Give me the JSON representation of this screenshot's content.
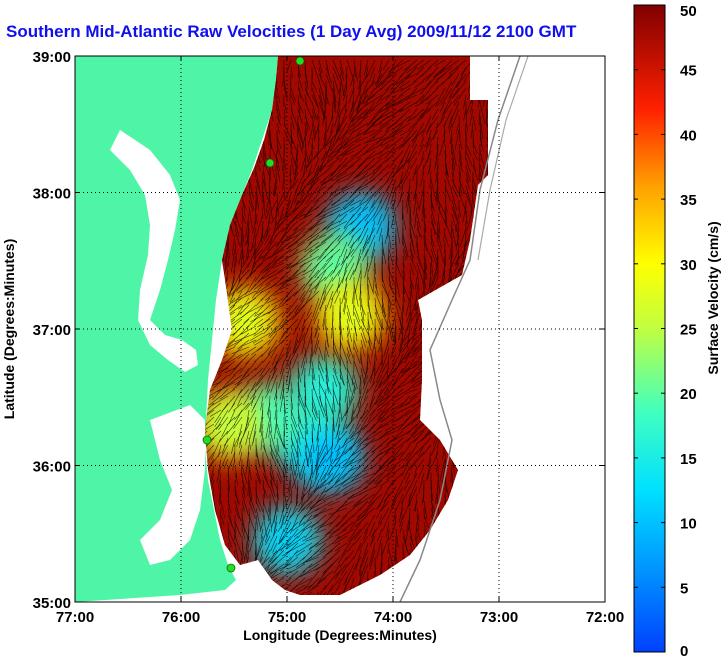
{
  "title": "Southern Mid-Atlantic Raw Velocities (1 Day Avg) 2009/11/12 2100 GMT",
  "chart_data": {
    "type": "heatmap",
    "title": "Southern Mid-Atlantic Raw Velocities (1 Day Avg) 2009/11/12 2100 GMT",
    "xlabel": "Longitude (Degrees:Minutes)",
    "ylabel": "Latitude (Degrees:Minutes)",
    "xlim": [
      -77,
      -72
    ],
    "ylim": [
      35,
      39
    ],
    "x_ticks": [
      {
        "value": -77,
        "label": "77:00"
      },
      {
        "value": -76,
        "label": "76:00"
      },
      {
        "value": -75,
        "label": "75:00"
      },
      {
        "value": -74,
        "label": "74:00"
      },
      {
        "value": -73,
        "label": "73:00"
      },
      {
        "value": -72,
        "label": "72:00"
      }
    ],
    "y_ticks": [
      {
        "value": 35,
        "label": "35:00"
      },
      {
        "value": 36,
        "label": "36:00"
      },
      {
        "value": 37,
        "label": "37:00"
      },
      {
        "value": 38,
        "label": "38:00"
      },
      {
        "value": 39,
        "label": "39:00"
      }
    ],
    "grid": "dotted",
    "colorbar": {
      "label": "Surface Velocity (cm/s)",
      "range": [
        0,
        50
      ],
      "ticks": [
        0,
        5,
        10,
        15,
        20,
        25,
        30,
        35,
        40,
        45,
        50
      ],
      "colormap": "jet"
    },
    "low_speed_zones": [
      {
        "lon": -74.3,
        "lat": 37.75,
        "value": 12
      },
      {
        "lon": -74.55,
        "lat": 37.45,
        "value": 22
      },
      {
        "lon": -74.8,
        "lat": 36.2,
        "value": 14
      },
      {
        "lon": -74.6,
        "lat": 36.05,
        "value": 12
      },
      {
        "lon": -75.15,
        "lat": 36.35,
        "value": 20
      },
      {
        "lon": -74.65,
        "lat": 36.55,
        "value": 18
      },
      {
        "lon": -75.55,
        "lat": 36.3,
        "value": 28
      },
      {
        "lon": -75.4,
        "lat": 37.05,
        "value": 30
      },
      {
        "lon": -74.4,
        "lat": 37.1,
        "value": 30
      },
      {
        "lon": -75.0,
        "lat": 35.45,
        "value": 14
      }
    ],
    "background_speed": 48,
    "colors": {
      "land": "#4ff5a7",
      "water_background": "#ffffff",
      "vector": "#000000",
      "title": "#1010ee",
      "site_marker": "#22dd22"
    }
  }
}
